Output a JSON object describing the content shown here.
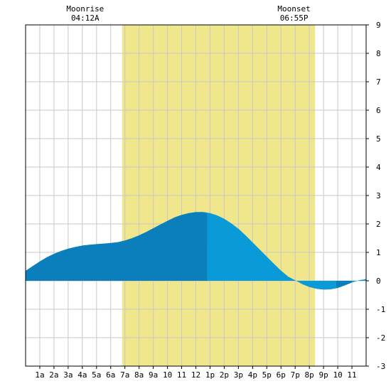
{
  "chart_data": {
    "type": "area",
    "title": "",
    "xlabel": "",
    "ylabel": "",
    "x_range_hours": [
      0,
      24
    ],
    "ylim": [
      -3,
      9
    ],
    "y_ticks": [
      -3,
      -2,
      -1,
      0,
      1,
      2,
      3,
      4,
      5,
      6,
      7,
      8,
      9
    ],
    "x_tick_hours": [
      1,
      2,
      3,
      4,
      5,
      6,
      7,
      8,
      9,
      10,
      11,
      12,
      13,
      14,
      15,
      16,
      17,
      18,
      19,
      20,
      21,
      22,
      23
    ],
    "x_tick_labels": [
      "1a",
      "2a",
      "3a",
      "4a",
      "5a",
      "6a",
      "7a",
      "8a",
      "9a",
      "10",
      "11",
      "12",
      "1p",
      "2p",
      "3p",
      "4p",
      "5p",
      "6p",
      "7p",
      "8p",
      "9p",
      "10",
      "11"
    ],
    "grid": true,
    "daylight": {
      "start_hour": 6.8,
      "end_hour": 20.4,
      "color": "#f0e68c"
    },
    "moonrise": {
      "label": "Moonrise",
      "time": "04:12A",
      "hour": 4.2
    },
    "moonset": {
      "label": "Moonset",
      "time": "06:55P",
      "hour": 18.92
    },
    "colors": {
      "past_fill": "#0a7fbb",
      "future_fill": "#0a9ad8",
      "grid": "#c8c8c8",
      "frame": "#000000"
    },
    "now_hour": 12.8,
    "series": [
      {
        "x": [
          0,
          0.5,
          1,
          1.5,
          2,
          2.5,
          3,
          3.5,
          4,
          4.5,
          5,
          5.5,
          6,
          6.5,
          7,
          7.5,
          8,
          8.5,
          9,
          9.5,
          10,
          10.5,
          11,
          11.5,
          12,
          12.5,
          13,
          13.5,
          14,
          14.5,
          15,
          15.5,
          16,
          16.5,
          17,
          17.5,
          18,
          18.5,
          19,
          19.5,
          20,
          20.5,
          21,
          21.5,
          22,
          22.5,
          23,
          23.5,
          24
        ],
        "values": [
          0.35,
          0.52,
          0.68,
          0.83,
          0.95,
          1.05,
          1.13,
          1.19,
          1.24,
          1.27,
          1.29,
          1.31,
          1.33,
          1.36,
          1.42,
          1.5,
          1.6,
          1.72,
          1.85,
          1.98,
          2.11,
          2.23,
          2.32,
          2.38,
          2.42,
          2.42,
          2.38,
          2.3,
          2.18,
          2.02,
          1.83,
          1.6,
          1.35,
          1.1,
          0.85,
          0.6,
          0.36,
          0.15,
          0.02,
          -0.12,
          -0.22,
          -0.28,
          -0.31,
          -0.3,
          -0.25,
          -0.16,
          -0.06,
          0.02,
          0.06
        ]
      }
    ]
  }
}
